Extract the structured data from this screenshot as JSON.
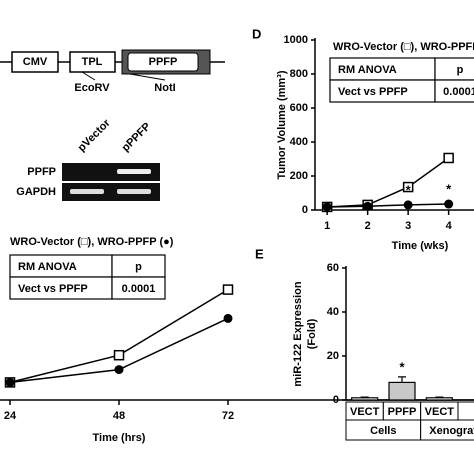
{
  "construct": {
    "labels": [
      "CMV",
      "TPL",
      "PPFP"
    ],
    "sites": [
      "EcoRV",
      "NotI"
    ]
  },
  "gel": {
    "lanes": [
      "pVector",
      "pPPFP"
    ],
    "rows": [
      "PPFP",
      "GAPDH"
    ]
  },
  "chart_data": [
    {
      "type": "line",
      "title": "WRO-Vector (□), WRO-PPFP (●)",
      "table": {
        "header": [
          "RM ANOVA",
          "p"
        ],
        "row": [
          "Vect vs PPFP",
          "0.0001"
        ]
      },
      "x": [
        24,
        48,
        72
      ],
      "xlim": [
        24,
        72
      ],
      "xticks": [
        24,
        48,
        72
      ],
      "xlabel": "Time (hrs)",
      "ylim": [
        0,
        100
      ],
      "series": [
        {
          "marker": "square",
          "color": "#000000",
          "values": [
            11,
            28,
            69
          ]
        },
        {
          "marker": "circle",
          "color": "#000000",
          "values": [
            11,
            19,
            51
          ]
        }
      ]
    },
    {
      "type": "line",
      "panel": "D",
      "title": "WRO-Vector (□), WRO-PPFP (●)",
      "table": {
        "header": [
          "RM ANOVA",
          "p"
        ],
        "row": [
          "Vect vs PPFP",
          "0.0001"
        ]
      },
      "x": [
        1,
        2,
        3,
        4
      ],
      "xlim": [
        0.7,
        5.3
      ],
      "xticks": [
        1,
        2,
        3,
        4
      ],
      "xlabel": "Time (wks)",
      "ylabel": "Tumor Volume (mm³)",
      "ylim": [
        0,
        1000
      ],
      "yticks": [
        0,
        200,
        400,
        600,
        800,
        1000
      ],
      "series": [
        {
          "marker": "square",
          "color": "#000000",
          "values": [
            18,
            30,
            135,
            306
          ]
        },
        {
          "marker": "circle",
          "color": "#000000",
          "values": [
            18,
            22,
            30,
            35
          ]
        }
      ],
      "annotations": [
        "*",
        "*"
      ]
    },
    {
      "type": "bar",
      "panel": "E",
      "ylabel": [
        "miR-122 Expression",
        "(Fold)"
      ],
      "categories": [
        "VECT",
        "PPFP",
        "VECT"
      ],
      "groups": [
        "Cells",
        "Xenografts"
      ],
      "values": [
        1,
        8,
        1
      ],
      "errors": [
        0.3,
        2.5,
        0.3
      ],
      "colors": [
        "#ffffff",
        "#c8c8c8",
        "#ffffff"
      ],
      "ylim": [
        0,
        60
      ],
      "yticks": [
        0,
        20,
        40,
        60
      ],
      "annotations": [
        "*"
      ]
    }
  ]
}
